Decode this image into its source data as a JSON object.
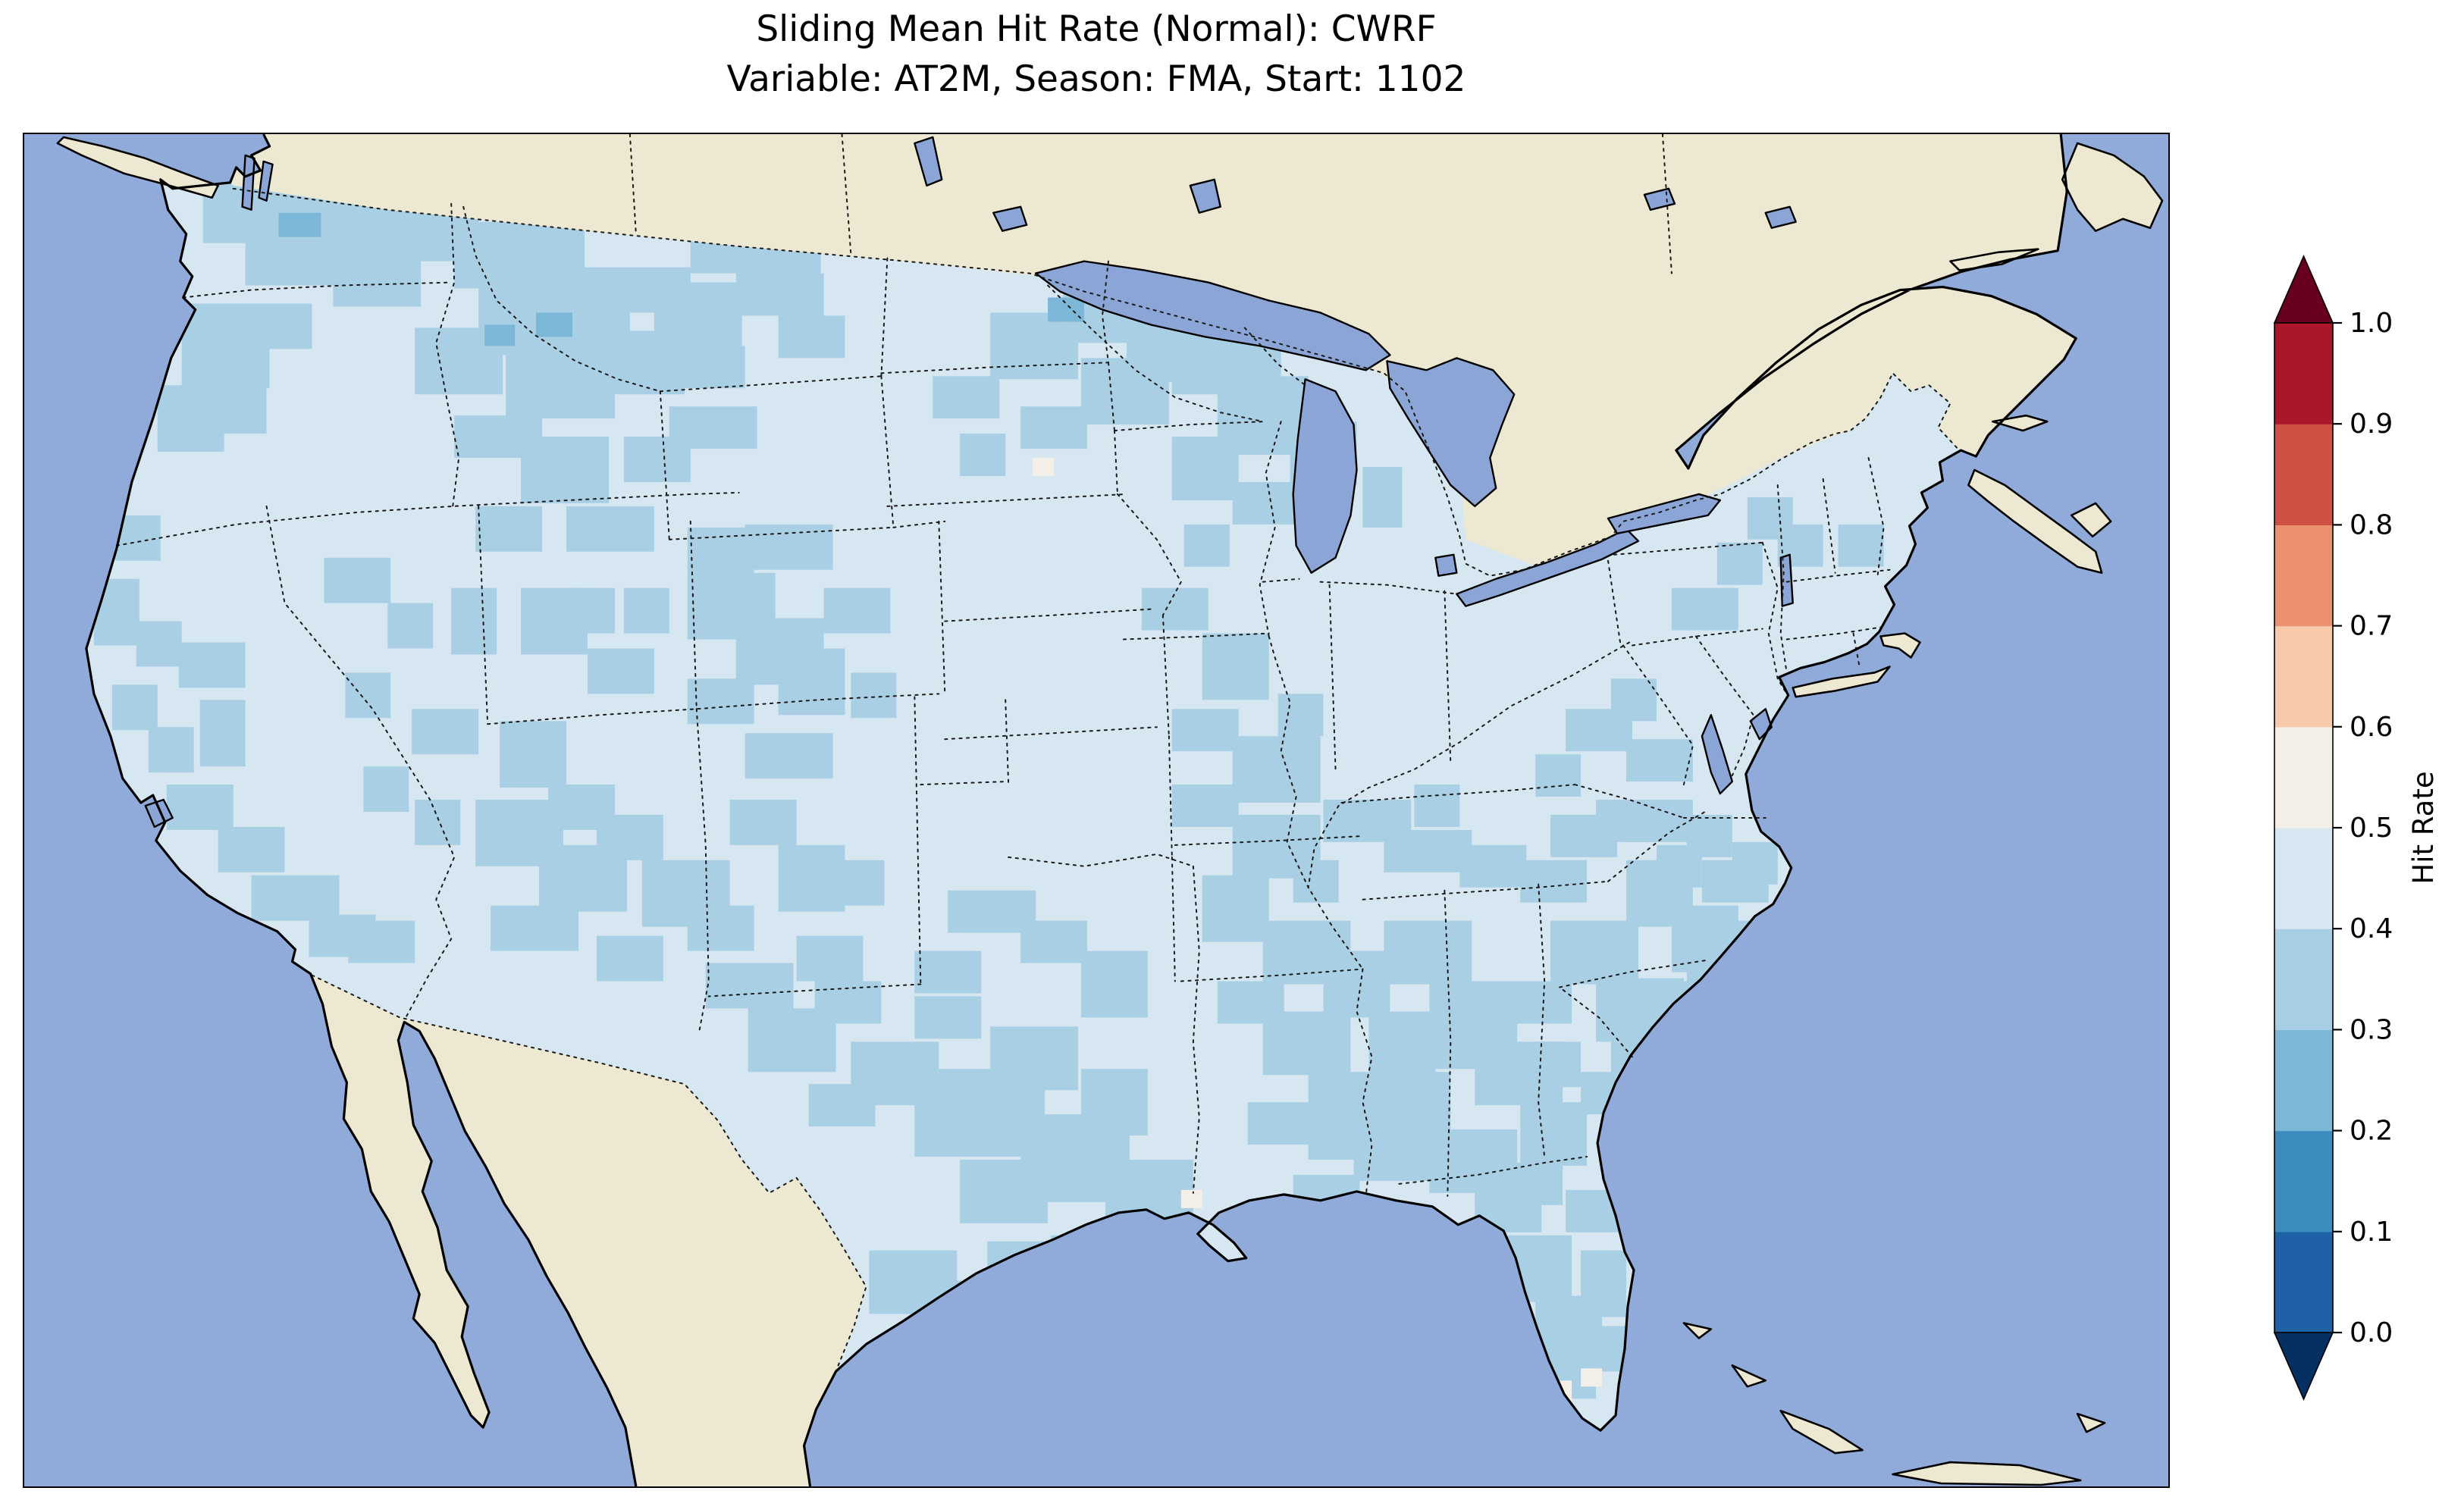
{
  "figure": {
    "title_line1": "Sliding Mean Hit Rate (Normal): CWRF",
    "title_line2": "Variable: AT2M, Season: FMA, Start: 1102"
  },
  "colorbar": {
    "label": "Hit Rate",
    "tick_labels": [
      "0.0",
      "0.1",
      "0.2",
      "0.3",
      "0.4",
      "0.5",
      "0.6",
      "0.7",
      "0.8",
      "0.9",
      "1.0"
    ],
    "segment_colors": [
      "#1e61a6",
      "#3d8cbf",
      "#7cb7d7",
      "#a9cfe4",
      "#d7e7f1",
      "#f3efe7",
      "#f9c9ac",
      "#ec9072",
      "#cf5143",
      "#ab162a"
    ],
    "under_color": "#053061",
    "over_color": "#67001f"
  },
  "map_colors": {
    "ocean": "#90aad9",
    "lake": "#8ba6d6",
    "land": "#ece8d2",
    "conus_base": "#d7e7f1"
  },
  "chart_data": {
    "type": "heatmap",
    "title": "Sliding Mean Hit Rate (Normal): CWRF",
    "subtitle": "Variable: AT2M, Season: FMA, Start: 1102",
    "model": "CWRF",
    "variable": "AT2M",
    "season": "FMA",
    "start": "1102",
    "region": "Continental United States (Lambert conformal view with Canada, Mexico, Gulf of Mexico, Great Lakes)",
    "colorbar_label": "Hit Rate",
    "colorbar_ticks": [
      0.0,
      0.1,
      0.2,
      0.3,
      0.4,
      0.5,
      0.6,
      0.7,
      0.8,
      0.9,
      1.0
    ],
    "colormap": "RdBu_r discrete, 10 bins, extend both",
    "value_summary": "Hit rate over CONUS is mostly 0.4-0.5 (light blue) across the Great Plains, Midwest, Ohio Valley, Northeast and mid-Atlantic; patches of 0.3-0.4 (medium blue) over the Pacific Northwest, Sierra/Rockies, Southwest, central and south Texas, Gulf Coast, Tennessee Valley, Southeast and Florida; a few isolated 0.2-0.3 cells in the far north and rare 0.5-0.6 cells near south Florida and the Mississippi delta.",
    "patch_layers": [
      {
        "bin": "0.3-0.4",
        "color": "#a9cfe4",
        "cells": [
          [
            118,
            28,
            110,
            44
          ],
          [
            146,
            70,
            96,
            30
          ],
          [
            228,
            40,
            72,
            44
          ],
          [
            204,
            84,
            58,
            30
          ],
          [
            104,
            112,
            58,
            56
          ],
          [
            88,
            166,
            44,
            44
          ],
          [
            146,
            112,
            44,
            30
          ],
          [
            130,
            154,
            30,
            44
          ],
          [
            284,
            58,
            86,
            44
          ],
          [
            300,
            102,
            100,
            44
          ],
          [
            368,
            88,
            72,
            30
          ],
          [
            258,
            128,
            58,
            44
          ],
          [
            318,
            146,
            72,
            42
          ],
          [
            284,
            186,
            58,
            28
          ],
          [
            378,
            130,
            58,
            42
          ],
          [
            416,
            98,
            58,
            42
          ],
          [
            440,
            62,
            86,
            30
          ],
          [
            470,
            92,
            58,
            28
          ],
          [
            498,
            120,
            44,
            28
          ],
          [
            432,
            140,
            44,
            28
          ],
          [
            60,
            252,
            30,
            30
          ],
          [
            46,
            294,
            30,
            44
          ],
          [
            74,
            322,
            30,
            30
          ],
          [
            58,
            364,
            30,
            30
          ],
          [
            82,
            392,
            30,
            30
          ],
          [
            102,
            336,
            44,
            30
          ],
          [
            116,
            374,
            30,
            44
          ],
          [
            94,
            430,
            44,
            30
          ],
          [
            128,
            458,
            44,
            30
          ],
          [
            150,
            490,
            58,
            30
          ],
          [
            188,
            516,
            44,
            28
          ],
          [
            214,
            520,
            44,
            28
          ],
          [
            198,
            280,
            44,
            30
          ],
          [
            240,
            310,
            30,
            30
          ],
          [
            212,
            356,
            30,
            30
          ],
          [
            256,
            380,
            44,
            30
          ],
          [
            224,
            418,
            30,
            30
          ],
          [
            282,
            300,
            30,
            44
          ],
          [
            258,
            440,
            30,
            30
          ],
          [
            328,
            200,
            58,
            44
          ],
          [
            298,
            246,
            44,
            30
          ],
          [
            358,
            246,
            58,
            30
          ],
          [
            396,
            200,
            44,
            30
          ],
          [
            426,
            180,
            58,
            28
          ],
          [
            314,
            388,
            44,
            44
          ],
          [
            346,
            430,
            44,
            30
          ],
          [
            328,
            300,
            44,
            44
          ],
          [
            372,
            340,
            44,
            30
          ],
          [
            396,
            300,
            30,
            30
          ],
          [
            438,
            260,
            44,
            30
          ],
          [
            438,
            290,
            58,
            44
          ],
          [
            476,
            258,
            58,
            30
          ],
          [
            470,
            320,
            58,
            44
          ],
          [
            438,
            360,
            44,
            30
          ],
          [
            498,
            340,
            44,
            44
          ],
          [
            528,
            300,
            44,
            30
          ],
          [
            546,
            356,
            30,
            30
          ],
          [
            476,
            396,
            58,
            30
          ],
          [
            360,
            300,
            30,
            30
          ],
          [
            298,
            440,
            58,
            44
          ],
          [
            340,
            470,
            58,
            44
          ],
          [
            308,
            510,
            58,
            30
          ],
          [
            378,
            450,
            44,
            30
          ],
          [
            408,
            480,
            58,
            44
          ],
          [
            438,
            510,
            44,
            30
          ],
          [
            378,
            530,
            44,
            30
          ],
          [
            466,
            440,
            44,
            30
          ],
          [
            498,
            470,
            44,
            44
          ],
          [
            450,
            548,
            58,
            30
          ],
          [
            510,
            530,
            44,
            30
          ],
          [
            538,
            480,
            30,
            30
          ],
          [
            478,
            578,
            58,
            42
          ],
          [
            522,
            560,
            44,
            28
          ],
          [
            546,
            600,
            58,
            42
          ],
          [
            588,
            570,
            44,
            28
          ],
          [
            518,
            628,
            44,
            28
          ],
          [
            588,
            618,
            86,
            58
          ],
          [
            638,
            590,
            58,
            42
          ],
          [
            658,
            648,
            72,
            58
          ],
          [
            618,
            678,
            58,
            42
          ],
          [
            698,
            618,
            44,
            44
          ],
          [
            714,
            678,
            58,
            42
          ],
          [
            678,
            728,
            58,
            30
          ],
          [
            610,
            500,
            58,
            28
          ],
          [
            658,
            520,
            44,
            28
          ],
          [
            698,
            540,
            44,
            44
          ],
          [
            588,
            540,
            44,
            28
          ],
          [
            558,
            738,
            58,
            42
          ],
          [
            598,
            758,
            44,
            30
          ],
          [
            636,
            732,
            44,
            30
          ],
          [
            638,
            118,
            58,
            44
          ],
          [
            686,
            96,
            58,
            42
          ],
          [
            698,
            148,
            58,
            44
          ],
          [
            658,
            180,
            44,
            28
          ],
          [
            728,
            120,
            44,
            44
          ],
          [
            600,
            160,
            44,
            28
          ],
          [
            618,
            198,
            30,
            28
          ],
          [
            758,
            130,
            72,
            42
          ],
          [
            788,
            170,
            58,
            42
          ],
          [
            758,
            200,
            44,
            42
          ],
          [
            818,
            160,
            30,
            28
          ],
          [
            836,
            190,
            44,
            42
          ],
          [
            798,
            230,
            44,
            28
          ],
          [
            766,
            258,
            30,
            28
          ],
          [
            884,
            220,
            26,
            40
          ],
          [
            738,
            300,
            44,
            28
          ],
          [
            778,
            330,
            44,
            44
          ],
          [
            758,
            380,
            44,
            28
          ],
          [
            798,
            398,
            58,
            44
          ],
          [
            828,
            370,
            30,
            28
          ],
          [
            758,
            430,
            44,
            28
          ],
          [
            798,
            450,
            58,
            42
          ],
          [
            778,
            490,
            44,
            44
          ],
          [
            818,
            520,
            58,
            42
          ],
          [
            788,
            560,
            44,
            28
          ],
          [
            838,
            480,
            30,
            28
          ],
          [
            858,
            540,
            44,
            44
          ],
          [
            818,
            580,
            58,
            42
          ],
          [
            848,
            620,
            58,
            58
          ],
          [
            888,
            580,
            44,
            44
          ],
          [
            808,
            640,
            44,
            28
          ],
          [
            878,
            650,
            58,
            42
          ],
          [
            838,
            688,
            44,
            28
          ],
          [
            898,
            520,
            58,
            42
          ],
          [
            928,
            560,
            58,
            58
          ],
          [
            958,
            600,
            58,
            42
          ],
          [
            898,
            620,
            44,
            42
          ],
          [
            928,
            658,
            58,
            42
          ],
          [
            978,
            560,
            44,
            28
          ],
          [
            988,
            640,
            44,
            42
          ],
          [
            958,
            680,
            58,
            28
          ],
          [
            998,
            600,
            30,
            30
          ],
          [
            858,
            440,
            58,
            28
          ],
          [
            898,
            460,
            58,
            28
          ],
          [
            948,
            470,
            44,
            28
          ],
          [
            988,
            480,
            44,
            28
          ],
          [
            918,
            430,
            30,
            28
          ],
          [
            1008,
            450,
            44,
            28
          ],
          [
            1008,
            520,
            58,
            42
          ],
          [
            1038,
            558,
            58,
            42
          ],
          [
            1048,
            600,
            44,
            28
          ],
          [
            1058,
            480,
            44,
            44
          ],
          [
            1088,
            510,
            44,
            44
          ],
          [
            1098,
            550,
            44,
            28
          ],
          [
            1028,
            620,
            44,
            28
          ],
          [
            1078,
            470,
            30,
            28
          ],
          [
            1108,
            480,
            44,
            28
          ],
          [
            1118,
            520,
            30,
            28
          ],
          [
            1038,
            440,
            44,
            28
          ],
          [
            1078,
            560,
            30,
            44
          ],
          [
            1068,
            610,
            30,
            28
          ],
          [
            958,
            698,
            44,
            28
          ],
          [
            978,
            728,
            44,
            44
          ],
          [
            998,
            768,
            44,
            44
          ],
          [
            1018,
            698,
            44,
            28
          ],
          [
            1028,
            738,
            30,
            44
          ],
          [
            1038,
            788,
            30,
            30
          ],
          [
            1008,
            808,
            30,
            28
          ],
          [
            1018,
            380,
            44,
            28
          ],
          [
            1048,
            360,
            30,
            28
          ],
          [
            1058,
            400,
            44,
            28
          ],
          [
            998,
            410,
            30,
            28
          ],
          [
            1058,
            440,
            44,
            28
          ],
          [
            1098,
            450,
            30,
            28
          ],
          [
            1128,
            468,
            30,
            28
          ],
          [
            1088,
            300,
            44,
            28
          ],
          [
            1118,
            270,
            30,
            28
          ],
          [
            1138,
            240,
            30,
            28
          ],
          [
            1158,
            258,
            30,
            28
          ],
          [
            1198,
            258,
            30,
            28
          ]
        ]
      },
      {
        "bin": "0.2-0.3",
        "color": "#7cb7d7",
        "cells": [
          [
            676,
            108,
            24,
            16
          ],
          [
            168,
            52,
            28,
            16
          ],
          [
            338,
            118,
            24,
            16
          ],
          [
            700,
            92,
            20,
            14
          ],
          [
            304,
            126,
            20,
            14
          ]
        ]
      },
      {
        "bin": "0.5-0.6",
        "color": "#f3efe7",
        "cells": [
          [
            1006,
            824,
            16,
            14
          ],
          [
            1028,
            816,
            14,
            12
          ],
          [
            764,
            698,
            14,
            12
          ],
          [
            666,
            214,
            14,
            12
          ]
        ]
      }
    ]
  }
}
